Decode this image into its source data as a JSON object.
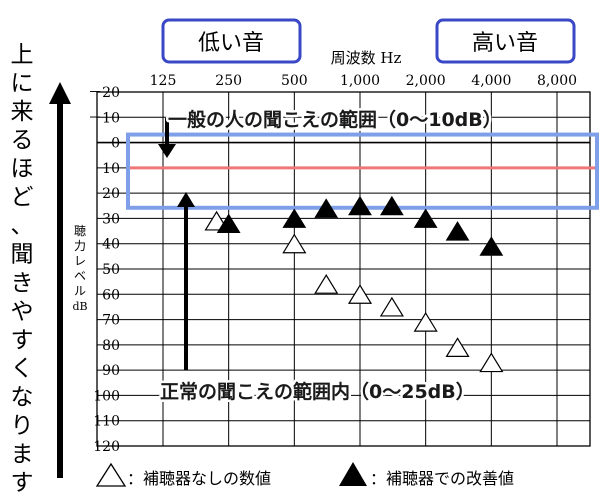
{
  "chart_data": {
    "type": "scatter",
    "x_axis": {
      "title": "周波数 Hz",
      "tick_labels": [
        "125",
        "250",
        "500",
        "1,000",
        "2,000",
        "4,000",
        "8,000"
      ],
      "scale": "log2"
    },
    "y_axis": {
      "title": "聴力レベル dB",
      "title_lines": [
        "聴",
        "力",
        "レ",
        "ベ",
        "ル",
        "dB"
      ],
      "tick_labels": [
        "－20",
        "－10",
        "0",
        "10",
        "20",
        "30",
        "40",
        "50",
        "60",
        "70",
        "80",
        "90",
        "100",
        "110",
        "120"
      ],
      "ylim": [
        -20,
        120
      ],
      "inverted": true
    },
    "grid": true,
    "series": [
      {
        "name": "補聴器なしの数値",
        "marker": "open-triangle",
        "points": [
          {
            "x": 220,
            "y": 31
          },
          {
            "x": 500,
            "y": 40
          },
          {
            "x": 700,
            "y": 56
          },
          {
            "x": 1000,
            "y": 60
          },
          {
            "x": 1400,
            "y": 65
          },
          {
            "x": 2000,
            "y": 71
          },
          {
            "x": 2800,
            "y": 81
          },
          {
            "x": 4000,
            "y": 87
          }
        ]
      },
      {
        "name": "補聴器での改善値",
        "marker": "filled-triangle",
        "points": [
          {
            "x": 250,
            "y": 32
          },
          {
            "x": 500,
            "y": 30
          },
          {
            "x": 700,
            "y": 26
          },
          {
            "x": 1000,
            "y": 25
          },
          {
            "x": 1400,
            "y": 25
          },
          {
            "x": 2000,
            "y": 30
          },
          {
            "x": 2800,
            "y": 35
          },
          {
            "x": 4000,
            "y": 41
          }
        ]
      }
    ],
    "bands": [
      {
        "label": "正常の聞こえの範囲内（0〜25dB）",
        "from": 0,
        "to": 25,
        "color": "#7fa0e8"
      },
      {
        "label": "一般の人の聞こえの範囲（0〜10dB）",
        "line_at": 10,
        "color": "#f07777"
      }
    ]
  },
  "header": {
    "low_label": "低い音",
    "high_label": "高い音"
  },
  "side_label": {
    "chars": [
      "上",
      "に",
      "来",
      "る",
      "ほ",
      "ど",
      "、",
      "聞",
      "き",
      "や",
      "す",
      "く",
      "な",
      "り",
      "ま",
      "す"
    ]
  },
  "annotations": {
    "general": "一般の人の聞こえの範囲（0〜10dB）",
    "normal": "正常の聞こえの範囲内（0〜25dB）"
  },
  "legend": {
    "open_label": "：補聴器なしの数値",
    "filled_label": "：補聴器での改善値"
  },
  "colors": {
    "box_border": "#3a47c6",
    "band_border": "#7fa0e8",
    "line_red": "#f07777",
    "arrow": "#000000"
  }
}
